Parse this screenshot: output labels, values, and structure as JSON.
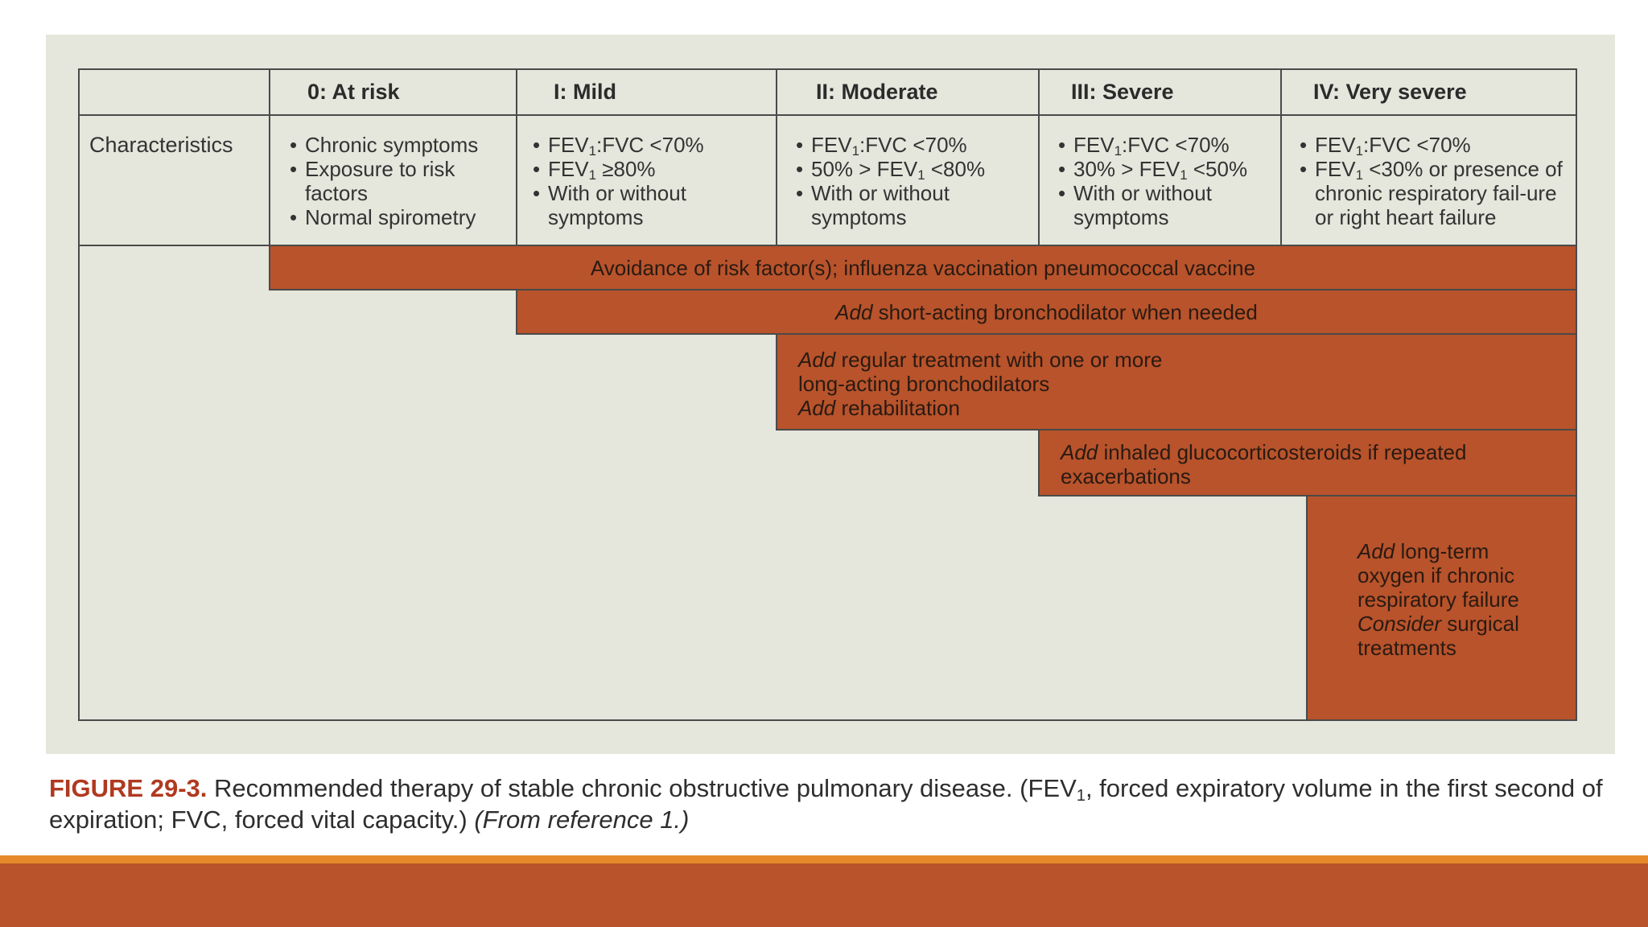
{
  "table": {
    "headers": [
      "0: At risk",
      "I: Mild",
      "II: Moderate",
      "III: Severe",
      "IV: Very severe"
    ],
    "row_label": "Characteristics",
    "characteristics": {
      "at_risk": [
        "Chronic symptoms",
        "Exposure to risk factors",
        "Normal spirometry"
      ],
      "mild": {
        "line1": ":FVC <70%",
        "line2": " ≥80%",
        "line3": "With or without symptoms"
      },
      "moderate": {
        "line1": ":FVC <70%",
        "line2_pre": "50% > FEV",
        "line2_post": " <80%",
        "line3": "With or without symptoms"
      },
      "severe": {
        "line1": ":FVC <70%",
        "line2_pre": "30% > FEV",
        "line2_post": " <50%",
        "line3": "With or without symptoms"
      },
      "very_severe": {
        "line1": ":FVC <70%",
        "line2": " <30% or presence of chronic respiratory fail-ure or right heart failure"
      },
      "fev": "FEV",
      "sub_one": "1"
    },
    "therapy": {
      "bar1": "Avoidance of risk factor(s); influenza vaccination pneumococcal vaccine",
      "bar2_em": "Add",
      "bar2_rest": " short-acting bronchodilator when needed",
      "bar3_em1": "Add",
      "bar3_rest1": " regular treatment with one or more long-acting bronchodilators",
      "bar3_em2": "Add",
      "bar3_rest2": " rehabilitation",
      "bar4_em": "Add",
      "bar4_rest": " inhaled glucocorticosteroids if repeated exacerbations",
      "bar5_em1": "Add",
      "bar5_rest1": " long-term oxygen if chronic respiratory failure",
      "bar5_em2": "Consider",
      "bar5_rest2": " surgical treatments"
    }
  },
  "caption": {
    "label": "FIGURE 29-3.",
    "text1": " Recommended therapy of stable chronic obstructive pulmonary disease. (FEV",
    "sub": "1",
    "text2": ", forced expiratory volume in the first second of expiration; FVC, forced vital capacity.) ",
    "source": "(From reference 1.)"
  },
  "colors": {
    "panel": "#e5e6dc",
    "therapy_bar": "#b8532b",
    "caption_label": "#b0391f",
    "footer_stripe": "#e6892a",
    "footer_band": "#b8532b"
  }
}
